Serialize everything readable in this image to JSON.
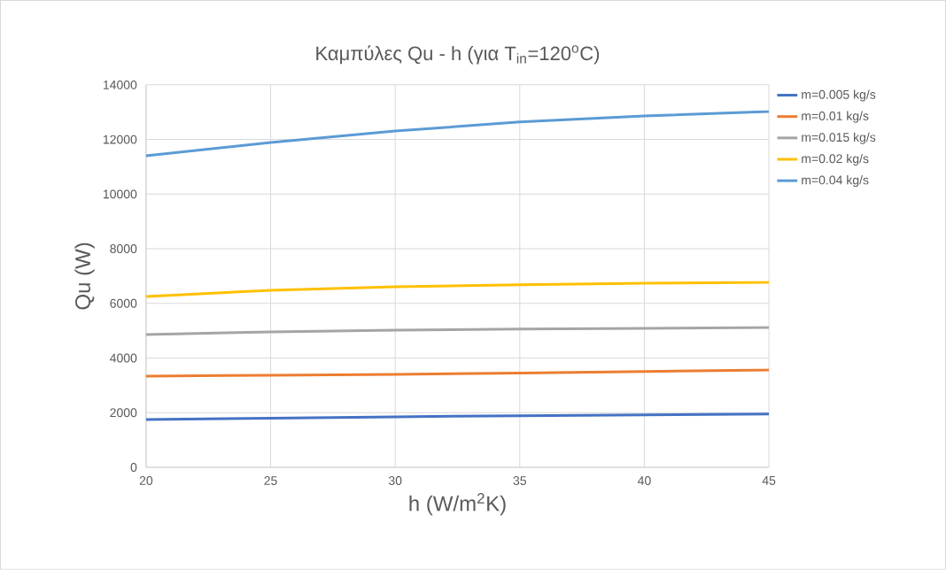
{
  "chart_data": {
    "type": "line",
    "title": "Καμπύλες Qu - h (για T$_{in}$=120$^{o}$C)",
    "xlabel": "h (W/m$^{2}$K)",
    "ylabel": "Qu (W)",
    "x": [
      20,
      25,
      30,
      35,
      40,
      45
    ],
    "series": [
      {
        "name": "m=0.005 kg/s",
        "color": "#4472c4",
        "values": [
          1750,
          1800,
          1850,
          1890,
          1920,
          1950
        ]
      },
      {
        "name": "m=0.01 kg/s",
        "color": "#ed7d31",
        "values": [
          3340,
          3370,
          3400,
          3450,
          3510,
          3560
        ]
      },
      {
        "name": "m=0.015 kg/s",
        "color": "#a5a5a5",
        "values": [
          4860,
          4960,
          5020,
          5060,
          5090,
          5120
        ]
      },
      {
        "name": "m=0.02 kg/s",
        "color": "#ffc000",
        "values": [
          6250,
          6480,
          6610,
          6680,
          6740,
          6770
        ]
      },
      {
        "name": "m=0.04 kg/s",
        "color": "#5b9bd5",
        "values": [
          11400,
          11890,
          12310,
          12640,
          12860,
          13020
        ]
      }
    ],
    "xlim": [
      20,
      45
    ],
    "xticks": [
      20,
      25,
      30,
      35,
      40,
      45
    ],
    "ylim": [
      0,
      14000
    ],
    "yticks": [
      0,
      2000,
      4000,
      6000,
      8000,
      10000,
      12000,
      14000
    ],
    "grid": true,
    "legend": "right",
    "marker": "none",
    "line_style": "solid"
  }
}
